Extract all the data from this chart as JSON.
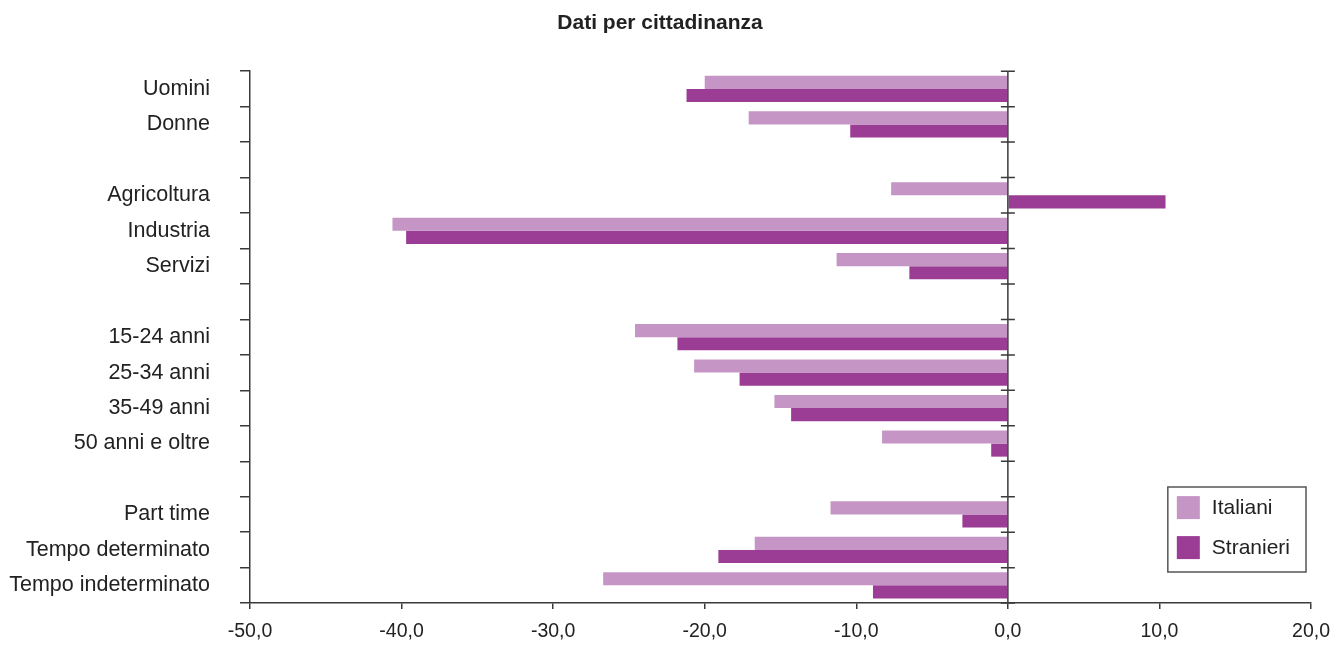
{
  "chart_data": {
    "type": "bar",
    "orientation": "horizontal",
    "title": "Dati per cittadinanza",
    "categories": [
      "Uomini",
      "Donne",
      null,
      "Agricoltura",
      "Industria",
      "Servizi",
      null,
      "15-24 anni",
      "25-34 anni",
      "35-49 anni",
      "50 anni e oltre",
      null,
      "Part time",
      "Tempo determinato",
      "Tempo indeterminato"
    ],
    "series": [
      {
        "name": "Italiani",
        "color": "#c495c5",
        "values": [
          -20.0,
          -17.1,
          null,
          -7.7,
          -40.6,
          -11.3,
          null,
          -24.6,
          -20.7,
          -15.4,
          -8.3,
          null,
          -11.7,
          -16.7,
          -26.7
        ]
      },
      {
        "name": "Stranieri",
        "color": "#9b3c95",
        "values": [
          -21.2,
          -10.4,
          null,
          10.4,
          -39.7,
          -6.5,
          null,
          -21.8,
          -17.7,
          -14.3,
          -1.1,
          null,
          -3.0,
          -19.1,
          -8.9
        ]
      }
    ],
    "xlim": [
      -50,
      20
    ],
    "xticks": [
      {
        "value": -50,
        "label": "-50,0"
      },
      {
        "value": -40,
        "label": "-40,0"
      },
      {
        "value": -30,
        "label": "-30,0"
      },
      {
        "value": -20,
        "label": "-20,0"
      },
      {
        "value": -10,
        "label": "-10,0"
      },
      {
        "value": 0,
        "label": "0,0"
      },
      {
        "value": 10,
        "label": "10,0"
      },
      {
        "value": 20,
        "label": "20,0"
      }
    ],
    "legend": "bottom right"
  }
}
